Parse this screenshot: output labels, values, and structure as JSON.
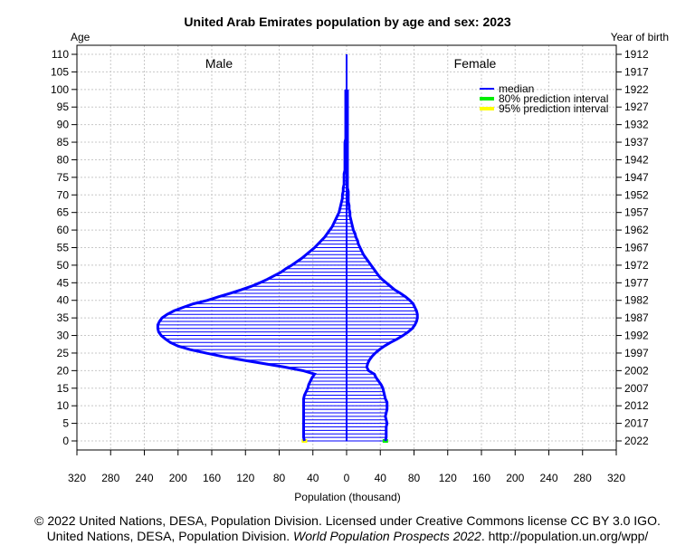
{
  "chart_data": {
    "type": "bar",
    "orientation": "horizontal-population-pyramid",
    "title": "United Arab Emirates population by age and sex: 2023",
    "xlabel": "Population (thousand)",
    "ylabel_left": "Age",
    "ylabel_right": "Year of birth",
    "xlim": [
      -320,
      320
    ],
    "ylim": [
      0,
      110
    ],
    "x_ticks": [
      -320,
      -280,
      -240,
      -200,
      -160,
      -120,
      -80,
      -40,
      0,
      40,
      80,
      120,
      160,
      200,
      240,
      280,
      320
    ],
    "x_tick_labels": [
      "320",
      "280",
      "240",
      "200",
      "160",
      "120",
      "80",
      "40",
      "0",
      "40",
      "80",
      "120",
      "160",
      "200",
      "240",
      "280",
      "320"
    ],
    "age_ticks": [
      0,
      5,
      10,
      15,
      20,
      25,
      30,
      35,
      40,
      45,
      50,
      55,
      60,
      65,
      70,
      75,
      80,
      85,
      90,
      95,
      100,
      105,
      110
    ],
    "age_tick_labels": [
      "0",
      "5",
      "10",
      "15",
      "20",
      "25",
      "30",
      "35",
      "40",
      "45",
      "50",
      "55",
      "60",
      "65",
      "70",
      "75",
      "80",
      "85",
      "90",
      "95",
      "100",
      "105",
      "110"
    ],
    "birth_year_tick_labels": [
      "2022",
      "2017",
      "2012",
      "2007",
      "2002",
      "1997",
      "1992",
      "1987",
      "1982",
      "1977",
      "1972",
      "1967",
      "1962",
      "1957",
      "1952",
      "1947",
      "1942",
      "1937",
      "1932",
      "1927",
      "1922",
      "1917",
      "1912"
    ],
    "grid": true,
    "side_labels": {
      "male": "Male",
      "female": "Female"
    },
    "legend": {
      "position": "top-right",
      "items": [
        {
          "label": "median",
          "color": "#0000ff"
        },
        {
          "label": "80% prediction interval",
          "color": "#00ee00"
        },
        {
          "label": "95% prediction interval",
          "color": "#ffff00"
        }
      ]
    },
    "ages": [
      0,
      1,
      2,
      3,
      4,
      5,
      6,
      7,
      8,
      9,
      10,
      11,
      12,
      13,
      14,
      15,
      16,
      17,
      18,
      19,
      20,
      21,
      22,
      23,
      24,
      25,
      26,
      27,
      28,
      29,
      30,
      31,
      32,
      33,
      34,
      35,
      36,
      37,
      38,
      39,
      40,
      41,
      42,
      43,
      44,
      45,
      46,
      47,
      48,
      49,
      50,
      51,
      52,
      53,
      54,
      55,
      56,
      57,
      58,
      59,
      60,
      61,
      62,
      63,
      64,
      65,
      66,
      67,
      68,
      69,
      70,
      71,
      72,
      73,
      74,
      75,
      76,
      77,
      78,
      79,
      80,
      81,
      82,
      83,
      84,
      85,
      86,
      87,
      88,
      89,
      90,
      91,
      92,
      93,
      94,
      95,
      96,
      97,
      98,
      99,
      100
    ],
    "series": [
      {
        "name": "Male",
        "values": [
          50,
          51,
          51,
          51,
          51,
          51,
          51,
          51,
          51,
          51,
          51,
          51,
          51,
          50,
          48,
          46,
          45,
          43,
          41,
          38,
          52,
          73,
          98,
          123,
          147,
          167,
          186,
          200,
          209,
          215,
          220,
          223,
          224,
          224,
          222,
          219,
          213,
          205,
          194,
          182,
          165,
          152,
          138,
          125,
          113,
          103,
          94,
          86,
          78,
          72,
          65,
          59,
          53,
          48,
          43,
          38,
          34,
          30,
          26,
          23,
          20,
          17,
          15,
          13,
          11,
          9,
          8,
          7,
          6,
          5,
          5,
          4,
          4,
          3,
          3,
          3,
          3,
          2,
          2,
          2,
          2,
          2,
          2,
          2,
          2,
          2,
          1,
          1,
          1,
          1,
          1,
          1,
          1,
          1,
          1,
          1,
          1,
          1,
          1,
          1,
          1
        ]
      },
      {
        "name": "Female",
        "values": [
          46,
          47,
          47,
          47,
          47,
          48,
          47,
          46,
          47,
          48,
          48,
          48,
          46,
          45,
          44,
          43,
          41,
          38,
          35,
          33,
          26,
          24,
          25,
          27,
          30,
          34,
          39,
          45,
          52,
          60,
          67,
          73,
          78,
          81,
          83,
          84,
          84,
          83,
          81,
          79,
          75,
          70,
          64,
          57,
          52,
          47,
          42,
          38,
          35,
          32,
          29,
          26,
          23,
          20,
          18,
          16,
          14,
          13,
          11,
          10,
          8,
          7,
          6,
          5,
          4,
          4,
          3,
          3,
          2,
          2,
          2,
          2,
          1,
          1,
          1,
          1,
          1,
          1,
          1,
          1,
          1,
          1,
          1,
          1,
          1,
          1,
          1,
          1,
          1,
          1,
          1,
          1,
          1,
          1,
          1,
          1,
          1,
          1,
          1,
          1,
          1
        ]
      }
    ]
  },
  "footer": {
    "line1": "© 2022 United Nations, DESA, Population Division. Licensed under Creative Commons license CC BY 3.0 IGO.",
    "line2_prefix": "United Nations, DESA, Population Division. ",
    "line2_italic": "World Population Prospects 2022",
    "line2_suffix": ". http://population.un.org/wpp/"
  }
}
